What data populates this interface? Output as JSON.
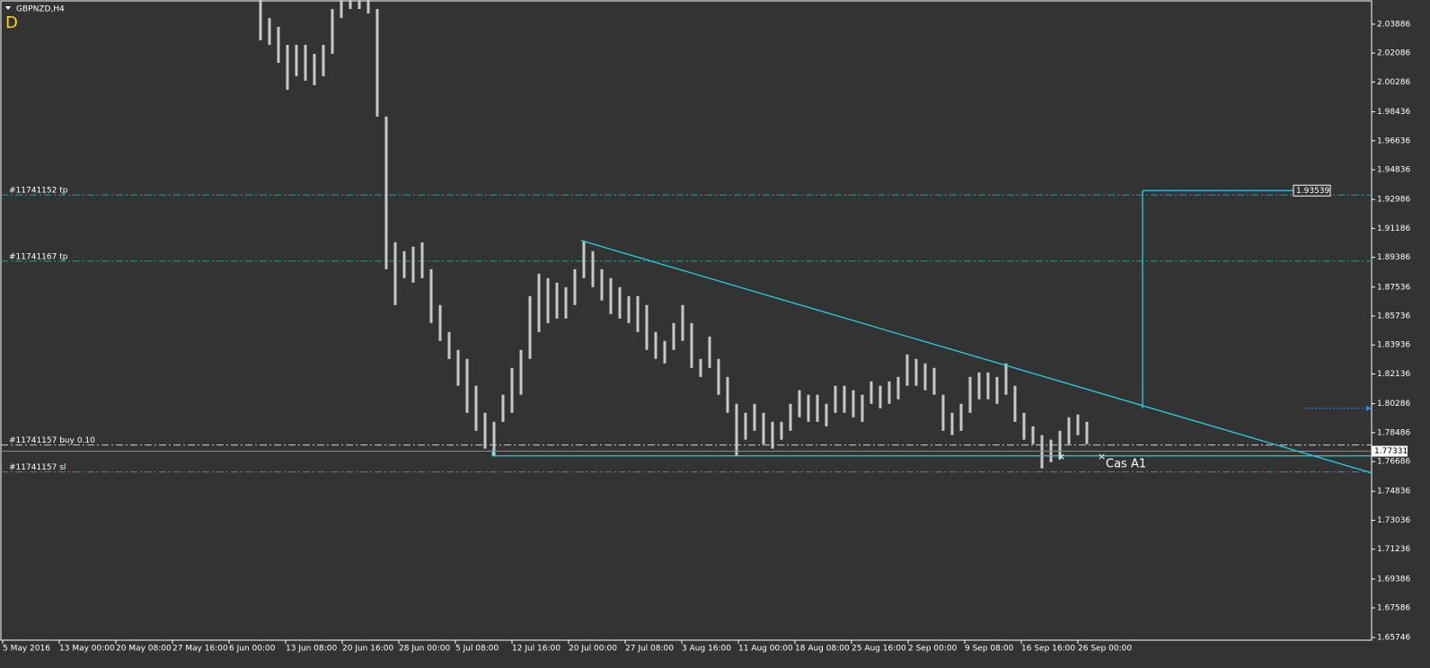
{
  "chart_data": {
    "type": "range_bar",
    "title": "GBPNZD,H4",
    "period_marker": "D",
    "categories": [
      "5 May 2016",
      "13 May 00:00",
      "20 May 08:00",
      "27 May 16:00",
      "6 Jun 00:00",
      "13 Jun 08:00",
      "20 Jun 16:00",
      "28 Jun 00:00",
      "5 Jul 08:00",
      "12 Jul 16:00",
      "20 Jul 00:00",
      "27 Jul 08:00",
      "3 Aug 16:00",
      "11 Aug 00:00",
      "18 Aug 08:00",
      "25 Aug 16:00",
      "2 Sep 00:00",
      "9 Sep 08:00",
      "16 Sep 16:00",
      "26 Sep 00:00"
    ],
    "high": [
      2.0539,
      2.0427,
      2.0372,
      2.026,
      2.026,
      2.026,
      2.0204,
      2.026,
      2.0483,
      2.0539,
      2.0539,
      2.0539,
      2.0539,
      2.0483,
      1.9814,
      1.9032,
      1.8977,
      1.9005,
      1.9032,
      1.8865,
      1.8642,
      1.8474,
      1.8363,
      1.8307,
      1.814,
      1.7972,
      1.7916,
      1.8084,
      1.8251,
      1.8363,
      1.8698,
      1.8837,
      1.8809,
      1.8781,
      1.8753,
      1.8865,
      1.9043,
      1.8977,
      1.8865,
      1.8809,
      1.8753,
      1.8698,
      1.8698,
      1.8642,
      1.8474,
      1.8419,
      1.853,
      1.8642,
      1.853,
      1.8307,
      1.8446,
      1.8307,
      1.8195,
      1.8028,
      1.7972,
      1.8028,
      1.7972,
      1.7916,
      1.7916,
      1.8028,
      1.8112,
      1.8084,
      1.8084,
      1.8028,
      1.814,
      1.814,
      1.8112,
      1.8084,
      1.8167,
      1.814,
      1.8167,
      1.8195,
      1.8335,
      1.8307,
      1.8279,
      1.8251,
      1.8084,
      1.7972,
      1.8028,
      1.8195,
      1.8223,
      1.8223,
      1.8195,
      1.8279,
      1.814,
      1.7972,
      1.7888,
      1.7833,
      1.7805,
      1.786,
      1.7944,
      1.7961,
      1.7916
    ],
    "low": [
      2.0288,
      2.026,
      2.0148,
      1.9981,
      2.0065,
      2.0037,
      2.0009,
      2.0065,
      2.0204,
      2.0427,
      2.0483,
      2.0483,
      2.0455,
      1.9814,
      1.8865,
      1.8642,
      1.8809,
      1.8781,
      1.8809,
      1.853,
      1.8419,
      1.8307,
      1.814,
      1.7972,
      1.786,
      1.7749,
      1.7704,
      1.7916,
      1.7972,
      1.8084,
      1.8307,
      1.8474,
      1.853,
      1.8558,
      1.8558,
      1.8642,
      1.8809,
      1.8753,
      1.867,
      1.8586,
      1.8558,
      1.853,
      1.8474,
      1.8363,
      1.8307,
      1.8279,
      1.8363,
      1.8419,
      1.8251,
      1.8195,
      1.8251,
      1.8084,
      1.7972,
      1.7704,
      1.7805,
      1.786,
      1.7777,
      1.7749,
      1.7805,
      1.786,
      1.7944,
      1.7916,
      1.7916,
      1.7888,
      1.7972,
      1.7972,
      1.7944,
      1.7916,
      1.8028,
      1.8,
      1.8028,
      1.8056,
      1.814,
      1.814,
      1.8112,
      1.8084,
      1.786,
      1.7833,
      1.786,
      1.7972,
      1.8056,
      1.8056,
      1.8028,
      1.8084,
      1.7916,
      1.7805,
      1.7777,
      1.7626,
      1.7665,
      1.7682,
      1.7777,
      1.7833,
      1.7777
    ],
    "color": "#c8c8c8",
    "ylim": [
      1.6558,
      2.0539
    ],
    "yticks": [
      2.03886,
      2.02086,
      2.00286,
      1.98436,
      1.96636,
      1.94836,
      1.92986,
      1.91186,
      1.89386,
      1.87536,
      1.85736,
      1.83936,
      1.82136,
      1.80286,
      1.78486,
      1.76686,
      1.74836,
      1.73036,
      1.71236,
      1.69386,
      1.67586,
      1.65746
    ],
    "levels": [
      {
        "name": "#11741152 tp",
        "value": 1.9327,
        "color": "#1fa3a3"
      },
      {
        "name": "#11741167 tp",
        "value": 1.8915,
        "color": "#1fa3a3"
      },
      {
        "name": "#11741157 buy 0.10",
        "value": 1.7772,
        "color": "#d0d0d0"
      },
      {
        "name": "#11741157 sl",
        "value": 1.7604,
        "color": "#1fa3a3"
      }
    ],
    "trendline": [
      1.9043,
      1.7598
    ],
    "support": 1.7704,
    "target_base": 1.8,
    "target": 1.93539,
    "alert_level": 1.8,
    "current_price": 1.77331,
    "annotation": "Cas A1",
    "line_color": "#22d3e0"
  }
}
